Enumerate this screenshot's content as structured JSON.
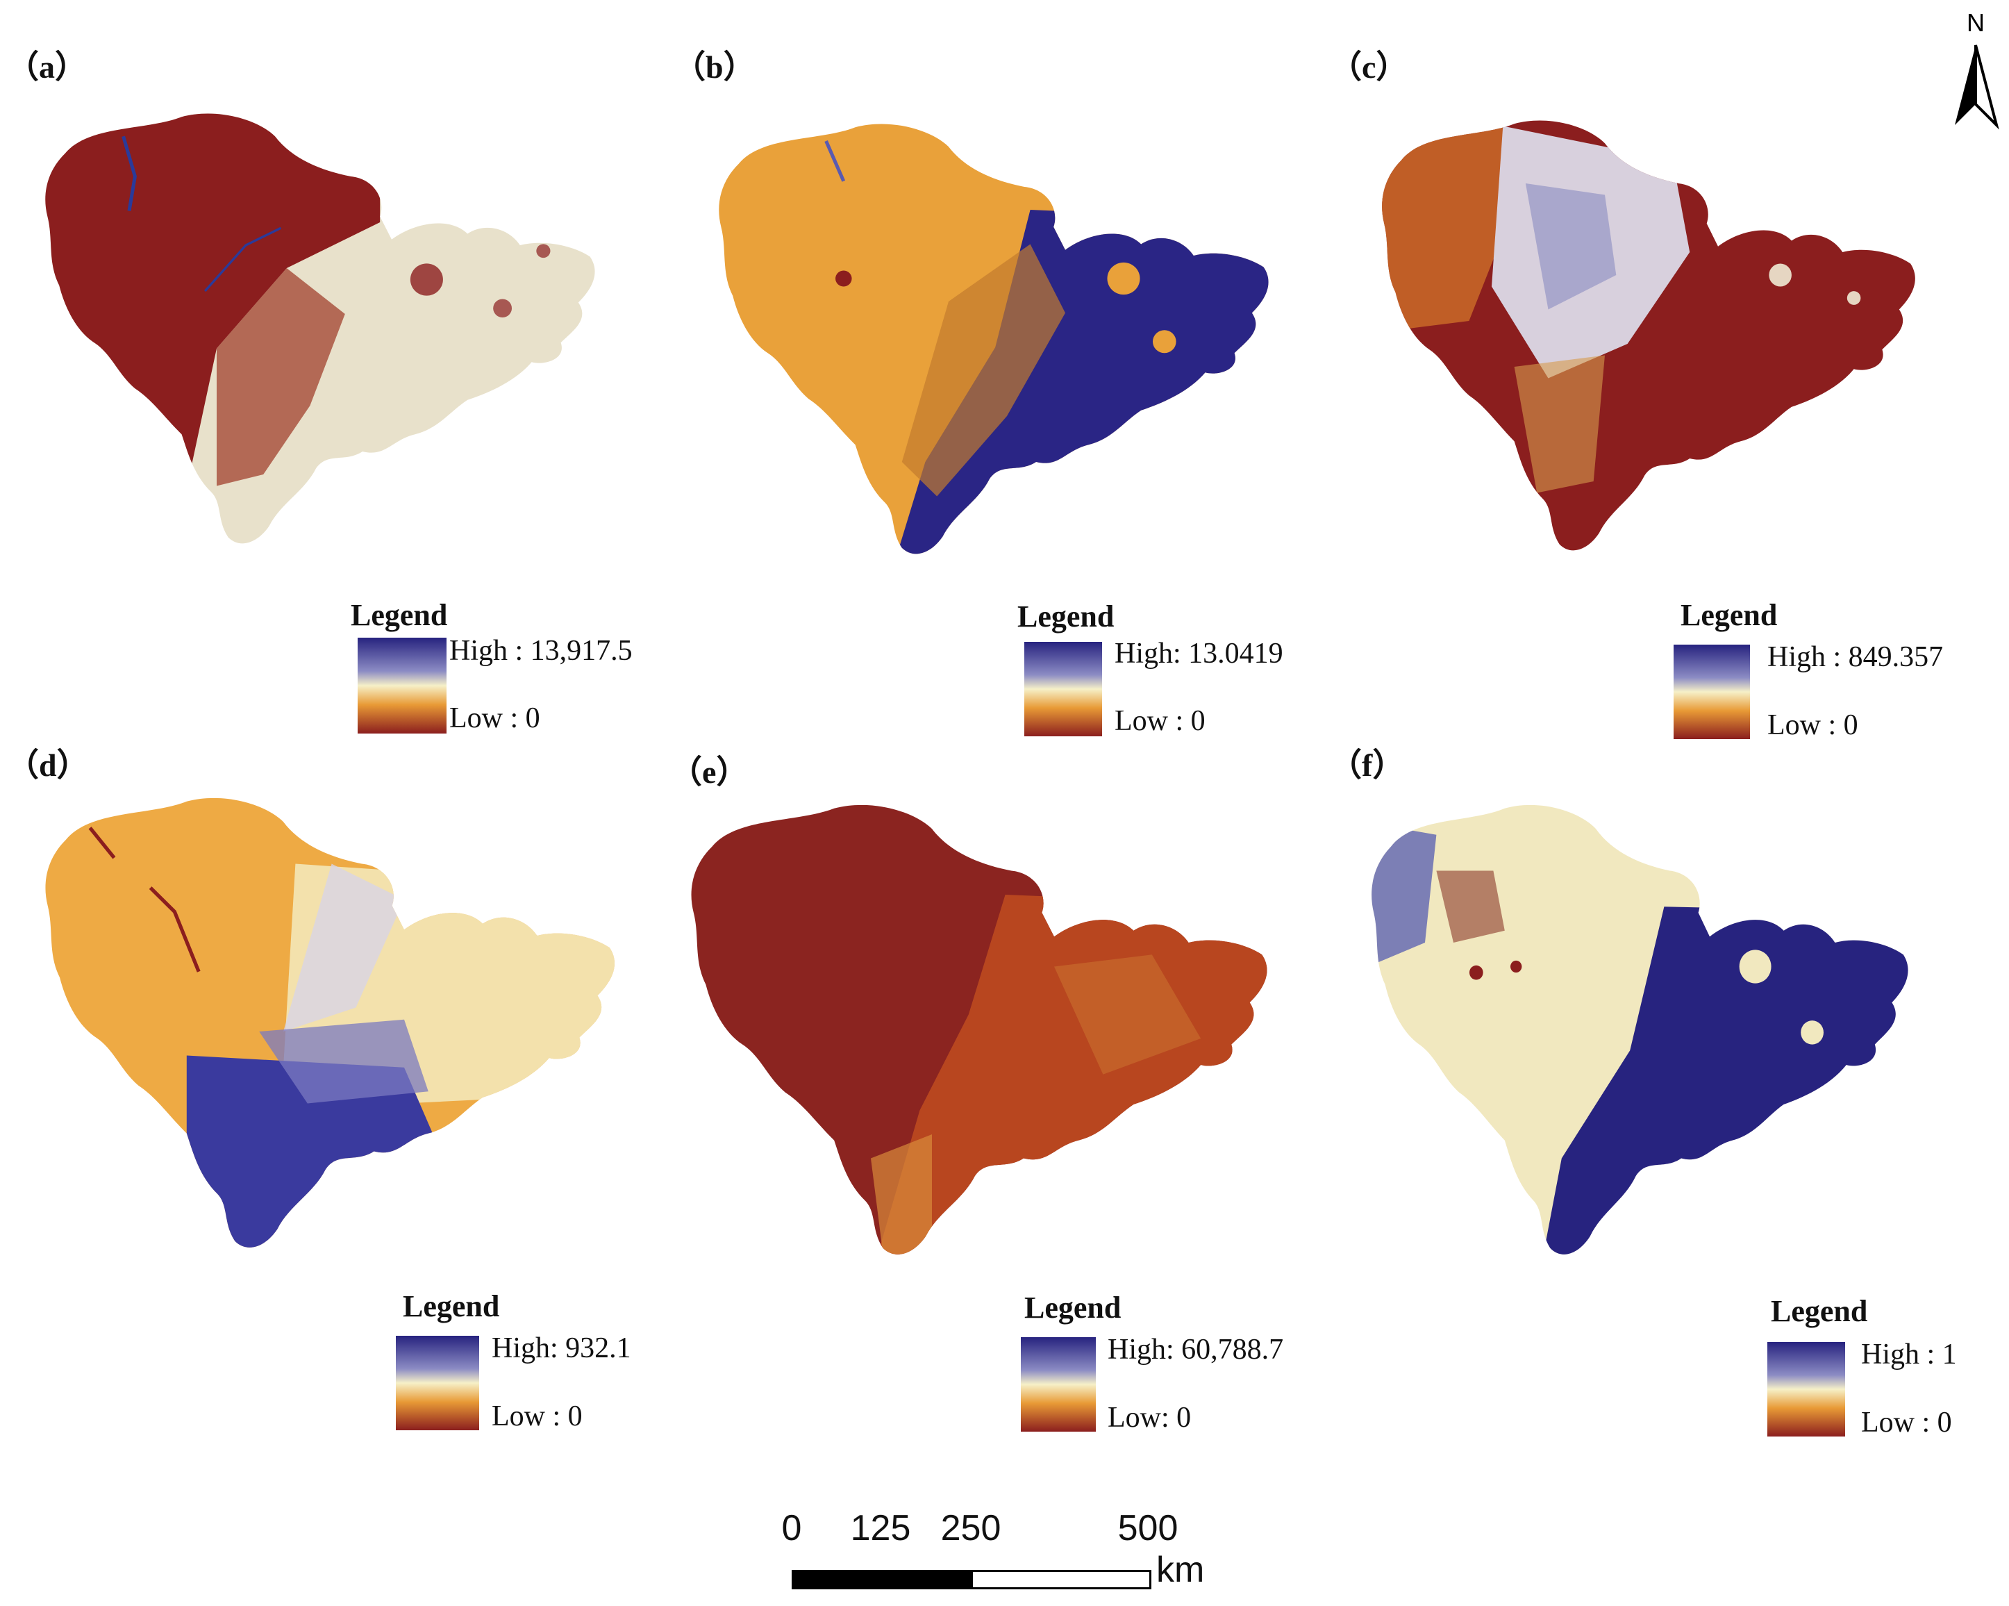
{
  "colors": {
    "low": "#8b1e1e",
    "low_mid": "#e08a2a",
    "mid": "#f6f0c0",
    "high": "#27237f",
    "background": "#ffffff"
  },
  "panels": [
    {
      "id": "a",
      "label": "（a）",
      "legend": {
        "title": "Legend",
        "high": "High : 13,917.5",
        "low": "Low : 0"
      },
      "dominant_colors": [
        "#8b1e1e",
        "#e9e2cc"
      ],
      "secondary_color": "#2a3a9a"
    },
    {
      "id": "b",
      "label": "（b）",
      "legend": {
        "title": "Legend",
        "high": "High: 13.0419",
        "low": "Low : 0"
      },
      "dominant_colors": [
        "#e9a13a",
        "#2a2585"
      ],
      "secondary_color": "#8b1e1e"
    },
    {
      "id": "c",
      "label": "（c）",
      "legend": {
        "title": "Legend",
        "high": "High : 849.357",
        "low": "Low : 0"
      },
      "dominant_colors": [
        "#8b1e1e",
        "#d8d0dd"
      ],
      "secondary_color": "#e9a13a"
    },
    {
      "id": "d",
      "label": "（d）",
      "legend": {
        "title": "Legend",
        "high": "High: 932.1",
        "low": "Low : 0"
      },
      "dominant_colors": [
        "#eeaa44",
        "#3a3a9e"
      ],
      "secondary_color": "#f3ecc8"
    },
    {
      "id": "e",
      "label": "（e）",
      "legend": {
        "title": "Legend",
        "high": "High: 60,788.7",
        "low": "Low: 0"
      },
      "dominant_colors": [
        "#8b2420",
        "#b8461f"
      ],
      "secondary_color": "#d88a3a"
    },
    {
      "id": "f",
      "label": "（f）",
      "legend": {
        "title": "Legend",
        "high": "High : 1",
        "low": "Low : 0"
      },
      "dominant_colors": [
        "#f1e8bf",
        "#27237f"
      ],
      "secondary_color": "#8b1e1e"
    }
  ],
  "north_arrow": {
    "label": "N"
  },
  "scale_bar": {
    "ticks": [
      "0",
      "125",
      "250",
      "500"
    ],
    "unit": "km"
  }
}
